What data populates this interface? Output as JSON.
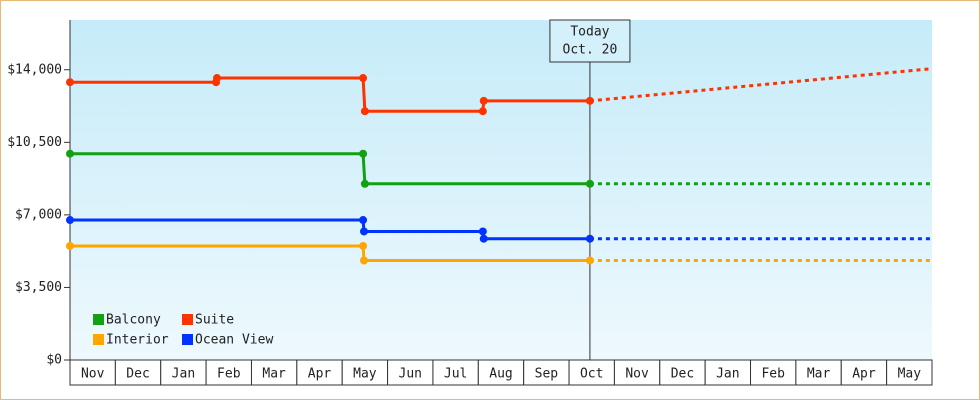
{
  "chart_data": {
    "type": "step-line",
    "categories": [
      "Nov",
      "Dec",
      "Jan",
      "Feb",
      "Mar",
      "Apr",
      "May",
      "Jun",
      "Jul",
      "Aug",
      "Sep",
      "Oct",
      "Nov",
      "Dec",
      "Jan",
      "Feb",
      "Mar",
      "Apr",
      "May"
    ],
    "xlim": [
      0,
      19
    ],
    "ylim": [
      0,
      16400
    ],
    "yticks": [
      {
        "value": 0,
        "label": "$0"
      },
      {
        "value": 3500,
        "label": "$3,500"
      },
      {
        "value": 7000,
        "label": "$7,000"
      },
      {
        "value": 10500,
        "label": "$10,500"
      },
      {
        "value": 14000,
        "label": "$14,000"
      }
    ],
    "today": {
      "x": 11.46,
      "label": "Today",
      "date": "Oct. 20"
    },
    "series": [
      {
        "name": "Balcony",
        "color": "#13a013",
        "x": [
          0,
          6.46,
          6.5,
          11.46
        ],
        "values": [
          9950,
          9950,
          8500,
          8500
        ],
        "forecast_x": [
          11.46,
          19
        ],
        "forecast_values": [
          8500,
          8500
        ]
      },
      {
        "name": "Suite",
        "color": "#ff3300",
        "x": [
          0,
          3.22,
          3.24,
          6.46,
          6.5,
          9.1,
          9.12,
          11.46
        ],
        "values": [
          13400,
          13400,
          13600,
          13600,
          12000,
          12000,
          12500,
          12500
        ],
        "forecast_x": [
          11.46,
          19
        ],
        "forecast_values": [
          12500,
          14050
        ]
      },
      {
        "name": "Interior",
        "color": "#ffa500",
        "x": [
          0,
          6.46,
          6.48,
          11.46
        ],
        "values": [
          5500,
          5500,
          4800,
          4800
        ],
        "forecast_x": [
          11.46,
          19
        ],
        "forecast_values": [
          4800,
          4800
        ]
      },
      {
        "name": "Ocean View",
        "color": "#0033ff",
        "x": [
          0,
          6.46,
          6.48,
          9.1,
          9.12,
          11.46
        ],
        "values": [
          6750,
          6750,
          6200,
          6200,
          5850,
          5850
        ],
        "forecast_x": [
          11.46,
          19
        ],
        "forecast_values": [
          5850,
          5850
        ]
      }
    ]
  }
}
